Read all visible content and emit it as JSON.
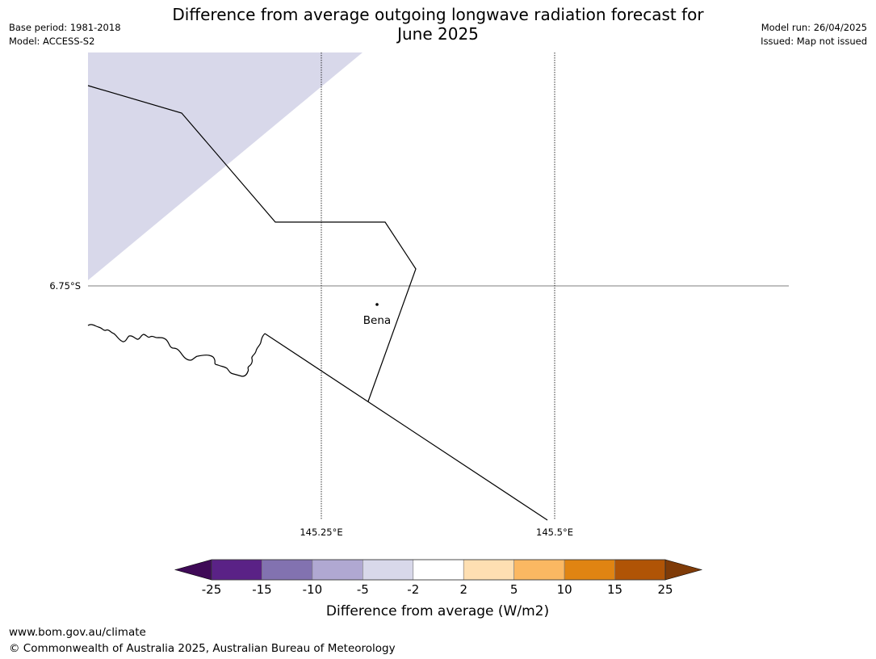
{
  "title": {
    "line1": "Difference from average outgoing longwave radiation forecast for",
    "line2": "June 2025"
  },
  "meta_left": {
    "base_period": "Base period: 1981-2018",
    "model": "Model: ACCESS-S2"
  },
  "meta_right": {
    "model_run": "Model run: 26/04/2025",
    "issued": "Issued: Map not issued"
  },
  "map": {
    "lat_labels": [
      {
        "text": "6.75°S",
        "value": -6.75
      }
    ],
    "lon_labels": [
      {
        "text": "145.25°E",
        "value": 145.25
      },
      {
        "text": "145.5°E",
        "value": 145.5
      }
    ],
    "place": {
      "name": "Bena"
    }
  },
  "colorbar": {
    "label": "Difference from average (W/m2)",
    "ticks": [
      "-25",
      "-15",
      "-10",
      "-5",
      "-2",
      "2",
      "5",
      "10",
      "15",
      "25"
    ],
    "colors": [
      "#3f0a57",
      "#5a2286",
      "#8272b0",
      "#b0a8d2",
      "#d8d8ea",
      "#ffffff",
      "#fedfb2",
      "#fbb862",
      "#e08412",
      "#b05406",
      "#7f3b08"
    ],
    "extend": "both"
  },
  "footer": {
    "url": "www.bom.gov.au/climate",
    "copyright": "© Commonwealth of Australia 2025, Australian Bureau of Meteorology"
  }
}
